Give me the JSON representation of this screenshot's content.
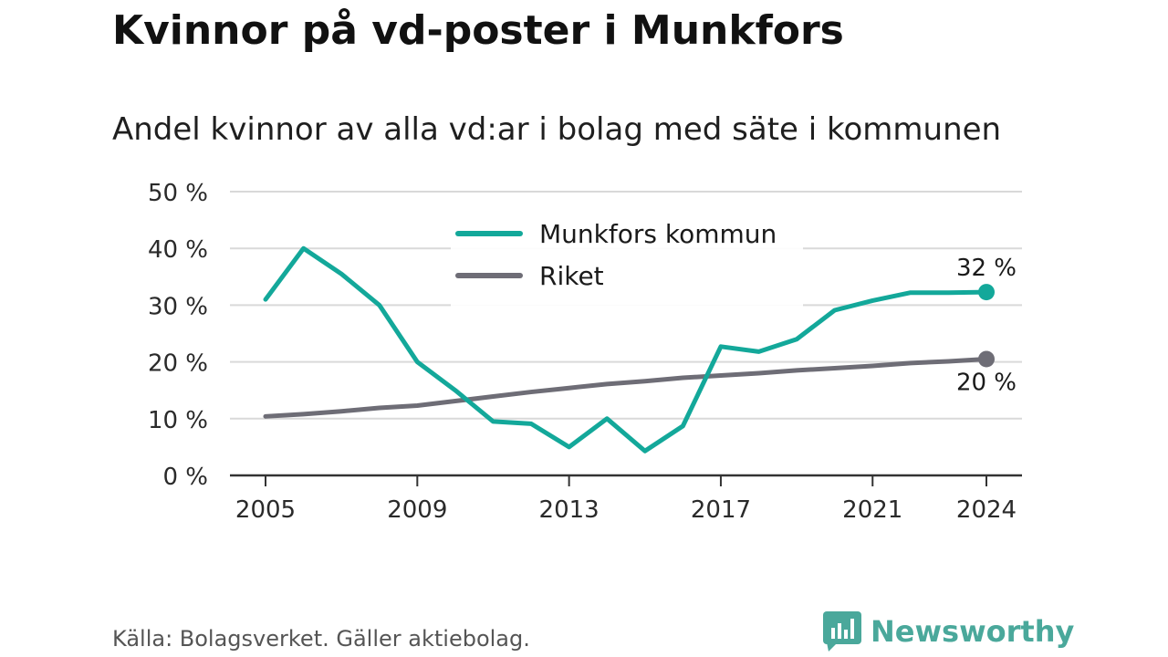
{
  "header": {
    "title": "Kvinnor på vd-poster i Munkfors",
    "subtitle": "Andel kvinnor av alla vd:ar i bolag med säte i kommunen"
  },
  "footer": {
    "source": "Källa: Bolagsverket. Gäller aktiebolag.",
    "brand": "Newsworthy",
    "brand_icon": "newsworthy-logo-icon"
  },
  "colors": {
    "munkfors": "#13a89a",
    "riket": "#6e6d76",
    "grid": "#d9d9d9",
    "axis": "#333333",
    "brand": "#4aa89b"
  },
  "chart_data": {
    "type": "line",
    "title": "Kvinnor på vd-poster i Munkfors",
    "subtitle": "Andel kvinnor av alla vd:ar i bolag med säte i kommunen",
    "xlabel": "",
    "ylabel": "",
    "x": [
      2005,
      2006,
      2007,
      2008,
      2009,
      2010,
      2011,
      2012,
      2013,
      2014,
      2015,
      2016,
      2017,
      2018,
      2019,
      2020,
      2021,
      2022,
      2023,
      2024
    ],
    "x_ticks": [
      "2005",
      "2009",
      "2013",
      "2017",
      "2021",
      "2024"
    ],
    "y_ticks": [
      "0 %",
      "10 %",
      "20 %",
      "30 %",
      "40 %",
      "50 %"
    ],
    "ylim": [
      0,
      50
    ],
    "grid": true,
    "legend_position": "top-center",
    "series": [
      {
        "name": "Munkfors kommun",
        "values": [
          31,
          40,
          35.5,
          30,
          20,
          15,
          9.5,
          9.1,
          5,
          10,
          4.3,
          8.7,
          22.7,
          21.8,
          24,
          29.1,
          30.8,
          32.2,
          32.2,
          32.3
        ],
        "end_label": "32 %"
      },
      {
        "name": "Riket",
        "values": [
          10.4,
          10.8,
          11.3,
          11.9,
          12.3,
          13.1,
          13.9,
          14.7,
          15.4,
          16.1,
          16.6,
          17.2,
          17.6,
          18,
          18.5,
          18.9,
          19.3,
          19.8,
          20.1,
          20.5
        ],
        "end_label": "20 %"
      }
    ]
  }
}
